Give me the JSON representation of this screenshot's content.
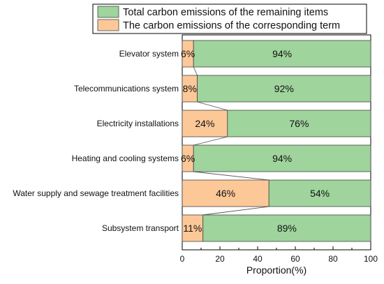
{
  "chart_data": {
    "type": "bar",
    "orientation": "horizontal",
    "stacked": true,
    "categories": [
      "Elevator system",
      "Telecommunications system",
      "Electricity installations",
      "Heating and cooling systems",
      "Water supply and sewage treatment facilities",
      "Subsystem transport"
    ],
    "series": [
      {
        "name": "The carbon emissions of the corresponding term",
        "color": "#fdc898",
        "values": [
          6,
          8,
          24,
          6,
          46,
          11
        ],
        "labels": [
          "6%",
          "8%",
          "24%",
          "6%",
          "46%",
          "11%"
        ]
      },
      {
        "name": "Total carbon emissions of the remaining items",
        "color": "#9fd49c",
        "values": [
          94,
          92,
          76,
          94,
          54,
          89
        ],
        "labels": [
          "94%",
          "92%",
          "76%",
          "94%",
          "54%",
          "89%"
        ]
      }
    ],
    "legend_order": [
      1,
      0
    ],
    "title": "",
    "xlabel": "Proportion(%)",
    "ylabel": "",
    "xlim": [
      0,
      100
    ],
    "xticks": [
      0,
      20,
      40,
      60,
      80,
      100
    ],
    "grid": false,
    "legend_position": "top",
    "connector_lines": true
  }
}
